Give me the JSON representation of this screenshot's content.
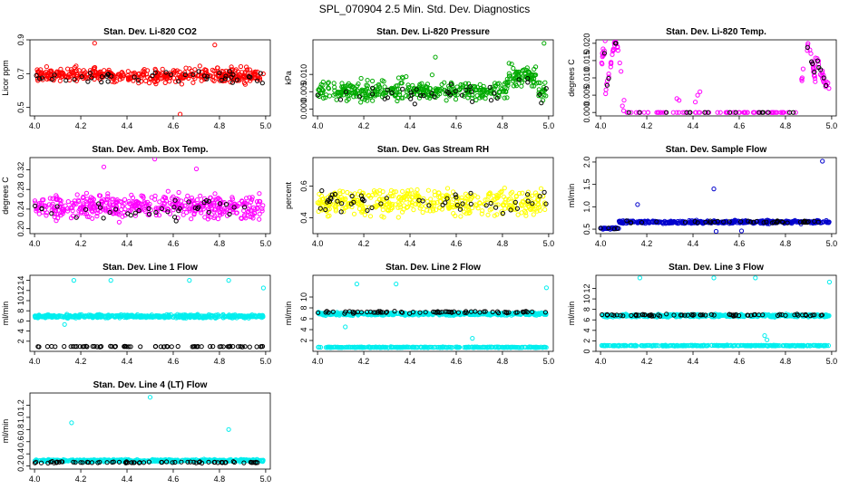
{
  "title": "SPL_070904  2.5 Min. Std. Dev. Diagnostics",
  "chart_data": [
    {
      "type": "scatter",
      "id": "co2",
      "title": "Stan. Dev. Li-820 CO2",
      "xlabel": "",
      "ylabel": "Licor ppm",
      "xlim": [
        3.98,
        5.02
      ],
      "ylim": [
        0.45,
        0.9
      ],
      "xticks": [
        "4.0",
        "4.2",
        "4.4",
        "4.6",
        "4.8",
        "5.0"
      ],
      "yticks": [
        "0.5",
        "0.7",
        "0.9"
      ],
      "series": [
        {
          "name": "red",
          "color": "#ff0000",
          "n": 420,
          "fn": "band",
          "a": 0.69,
          "b": 0.06,
          "min": 0.56,
          "max": 0.84,
          "outliers": [
            [
              4.26,
              0.88
            ],
            [
              4.78,
              0.87
            ],
            [
              4.63,
              0.46
            ]
          ]
        },
        {
          "name": "black",
          "color": "#000000",
          "n": 45,
          "fn": "band",
          "a": 0.68,
          "b": 0.05,
          "min": 0.58,
          "max": 0.82
        }
      ]
    },
    {
      "type": "scatter",
      "id": "pressure",
      "title": "Stan. Dev. Li-820 Pressure",
      "xlabel": "",
      "ylabel": "kPa",
      "xlim": [
        3.98,
        5.02
      ],
      "ylim": [
        -0.002,
        0.02
      ],
      "xticks": [
        "4.0",
        "4.2",
        "4.4",
        "4.6",
        "4.8",
        "5.0"
      ],
      "yticks": [
        "0.000",
        "0.005",
        "0.010"
      ],
      "series": [
        {
          "name": "green",
          "color": "#00aa00",
          "n": 440,
          "fn": "pressure",
          "a": 0.005,
          "b": 0.002,
          "min": 0.0,
          "max": 0.016,
          "outliers": [
            [
              4.98,
              0.019
            ],
            [
              4.51,
              0.015
            ],
            [
              4.84,
              0.013
            ]
          ]
        },
        {
          "name": "black",
          "color": "#000000",
          "n": 40,
          "fn": "pressure",
          "a": 0.004,
          "b": 0.002,
          "min": 0.0,
          "max": 0.01
        }
      ]
    },
    {
      "type": "scatter",
      "id": "temp",
      "title": "Stan. Dev. Li-820 Temp.",
      "xlabel": "",
      "ylabel": "degrees C",
      "xlim": [
        3.98,
        5.02
      ],
      "ylim": [
        -0.001,
        0.021
      ],
      "xticks": [
        "4.0",
        "4.2",
        "4.4",
        "4.6",
        "4.8",
        "5.0"
      ],
      "yticks": [
        "0.000",
        "0.005",
        "0.010",
        "0.015",
        "0.020"
      ],
      "series": [
        {
          "name": "magenta",
          "color": "#ff00ff",
          "n": 160,
          "fn": "temp",
          "a": 0,
          "b": 0,
          "min": 0,
          "max": 0.021,
          "outliers": [
            [
              4.33,
              0.004
            ],
            [
              4.34,
              0.0035
            ],
            [
              4.42,
              0.005
            ],
            [
              4.43,
              0.006
            ],
            [
              4.41,
              0.003
            ]
          ]
        },
        {
          "name": "black",
          "color": "#000000",
          "n": 30,
          "fn": "temp",
          "a": 0,
          "b": 0,
          "min": 0,
          "max": 0.02
        }
      ]
    },
    {
      "type": "scatter",
      "id": "ambbox",
      "title": "Stan. Dev. Amb. Box Temp.",
      "xlabel": "",
      "ylabel": "degrees C",
      "xlim": [
        3.98,
        5.02
      ],
      "ylim": [
        0.19,
        0.345
      ],
      "xticks": [
        "4.0",
        "4.2",
        "4.4",
        "4.6",
        "4.8",
        "5.0"
      ],
      "yticks": [
        "0.20",
        "0.24",
        "0.28",
        "0.32"
      ],
      "series": [
        {
          "name": "magenta",
          "color": "#ff00ff",
          "n": 450,
          "fn": "band",
          "a": 0.245,
          "b": 0.035,
          "min": 0.205,
          "max": 0.33,
          "outliers": [
            [
              4.52,
              0.342
            ],
            [
              4.3,
              0.326
            ],
            [
              4.7,
              0.322
            ]
          ]
        },
        {
          "name": "black",
          "color": "#000000",
          "n": 40,
          "fn": "band",
          "a": 0.24,
          "b": 0.03,
          "min": 0.2,
          "max": 0.27
        }
      ]
    },
    {
      "type": "scatter",
      "id": "rh",
      "title": "Stan. Dev. Gas Stream RH",
      "xlabel": "",
      "ylabel": "percent",
      "xlim": [
        3.98,
        5.02
      ],
      "ylim": [
        0.3,
        0.78
      ],
      "xticks": [
        "4.0",
        "4.2",
        "4.4",
        "4.6",
        "4.8",
        "5.0"
      ],
      "yticks": [
        "0.4",
        "0.6"
      ],
      "series": [
        {
          "name": "yellow",
          "color": "#ffff00",
          "n": 430,
          "fn": "band",
          "a": 0.5,
          "b": 0.12,
          "min": 0.33,
          "max": 0.76
        },
        {
          "name": "black",
          "color": "#000000",
          "n": 50,
          "fn": "band",
          "a": 0.5,
          "b": 0.1,
          "min": 0.35,
          "max": 0.72
        }
      ]
    },
    {
      "type": "scatter",
      "id": "sampleflow",
      "title": "Stan. Dev. Sample Flow",
      "xlabel": "",
      "ylabel": "ml/min",
      "xlim": [
        3.98,
        5.02
      ],
      "ylim": [
        0.4,
        2.1
      ],
      "xticks": [
        "4.0",
        "4.2",
        "4.4",
        "4.6",
        "4.8",
        "5.0"
      ],
      "yticks": [
        "0.5",
        "1.0",
        "1.5",
        "2.0"
      ],
      "series": [
        {
          "name": "blue",
          "color": "#0000cc",
          "n": 420,
          "fn": "sampleflow",
          "a": 0.66,
          "b": 0.05,
          "min": 0.45,
          "max": 0.85,
          "outliers": [
            [
              4.96,
              2.02
            ],
            [
              4.49,
              1.4
            ],
            [
              4.16,
              1.05
            ],
            [
              4.5,
              0.45
            ],
            [
              4.61,
              0.46
            ]
          ]
        },
        {
          "name": "black",
          "color": "#000000",
          "n": 45,
          "fn": "sampleflow",
          "a": 0.66,
          "b": 0.04,
          "min": 0.5,
          "max": 0.8
        }
      ]
    },
    {
      "type": "scatter",
      "id": "line1",
      "title": "Stan. Dev. Line 1 Flow",
      "xlabel": "",
      "ylabel": "ml/min",
      "xlim": [
        3.98,
        5.02
      ],
      "ylim": [
        0.0,
        15
      ],
      "xticks": [
        "4.0",
        "4.2",
        "4.4",
        "4.6",
        "4.8",
        "5.0"
      ],
      "yticks": [
        "2",
        "4",
        "6",
        "8",
        "10",
        "12",
        "14"
      ],
      "series": [
        {
          "name": "cyan",
          "color": "#00eeee",
          "n": 480,
          "fn": "band",
          "a": 6.9,
          "b": 0.45,
          "min": 5.8,
          "max": 8.0,
          "outliers": [
            [
              4.17,
              14.0
            ],
            [
              4.33,
              14.0
            ],
            [
              4.67,
              14.0
            ],
            [
              4.84,
              14.0
            ],
            [
              4.99,
              12.5
            ],
            [
              4.13,
              5.3
            ]
          ]
        },
        {
          "name": "black",
          "color": "#000000",
          "n": 70,
          "fn": "band",
          "a": 0.95,
          "b": 0.1,
          "min": 0.8,
          "max": 1.1
        }
      ]
    },
    {
      "type": "scatter",
      "id": "line2",
      "title": "Stan. Dev. Line 2 Flow",
      "xlabel": "",
      "ylabel": "ml/min",
      "xlim": [
        3.98,
        5.02
      ],
      "ylim": [
        0.0,
        14
      ],
      "xticks": [
        "4.0",
        "4.2",
        "4.4",
        "4.6",
        "4.8",
        "5.0"
      ],
      "yticks": [
        "2",
        "4",
        "6",
        "8",
        "10"
      ],
      "series": [
        {
          "name": "cyan",
          "color": "#00eeee",
          "n": 460,
          "fn": "band",
          "a": 6.9,
          "b": 0.4,
          "min": 6.0,
          "max": 7.8,
          "outliers": [
            [
              4.17,
              12.4
            ],
            [
              4.34,
              12.4
            ],
            [
              4.99,
              11.7
            ],
            [
              4.67,
              2.4
            ],
            [
              4.12,
              4.5
            ]
          ]
        },
        {
          "name": "cyan-low",
          "color": "#00eeee",
          "n": 300,
          "fn": "band",
          "a": 0.75,
          "b": 0.1,
          "min": 0.6,
          "max": 0.9
        },
        {
          "name": "black",
          "color": "#000000",
          "n": 70,
          "fn": "band",
          "a": 7.2,
          "b": 0.3,
          "min": 6.6,
          "max": 8.2
        }
      ]
    },
    {
      "type": "scatter",
      "id": "line3",
      "title": "Stan. Dev. Line 3 Flow",
      "xlabel": "",
      "ylabel": "ml/min",
      "xlim": [
        3.98,
        5.02
      ],
      "ylim": [
        0.0,
        14.5
      ],
      "xticks": [
        "4.0",
        "4.2",
        "4.4",
        "4.6",
        "4.8",
        "5.0"
      ],
      "yticks": [
        "0",
        "2",
        "4",
        "6",
        "8",
        "10",
        "12"
      ],
      "series": [
        {
          "name": "cyan",
          "color": "#00eeee",
          "n": 440,
          "fn": "band",
          "a": 6.8,
          "b": 0.35,
          "min": 6.0,
          "max": 7.6,
          "outliers": [
            [
              4.17,
              14.0
            ],
            [
              4.49,
              14.0
            ],
            [
              4.67,
              14.0
            ],
            [
              4.99,
              13.2
            ],
            [
              4.71,
              3.0
            ],
            [
              4.72,
              2.2
            ]
          ]
        },
        {
          "name": "cyan-low",
          "color": "#00eeee",
          "n": 300,
          "fn": "band",
          "a": 1.1,
          "b": 0.12,
          "min": 0.9,
          "max": 1.3
        },
        {
          "name": "black",
          "color": "#000000",
          "n": 70,
          "fn": "band",
          "a": 6.9,
          "b": 0.3,
          "min": 6.3,
          "max": 8.8
        }
      ]
    },
    {
      "type": "scatter",
      "id": "line4",
      "title": "Stan. Dev. Line 4 (LT) Flow",
      "xlabel": "",
      "ylabel": "ml/min",
      "xlim": [
        3.98,
        5.02
      ],
      "ylim": [
        0.15,
        1.4
      ],
      "xticks": [
        "4.0",
        "4.2",
        "4.4",
        "4.6",
        "4.8",
        "5.0"
      ],
      "yticks": [
        "0.2",
        "0.4",
        "0.6",
        "0.8",
        "1.0",
        "1.2"
      ],
      "series": [
        {
          "name": "cyan",
          "color": "#00eeee",
          "n": 470,
          "fn": "band",
          "a": 0.29,
          "b": 0.025,
          "min": 0.24,
          "max": 0.35,
          "outliers": [
            [
              4.5,
              1.33
            ],
            [
              4.16,
              0.91
            ],
            [
              4.84,
              0.8
            ]
          ]
        },
        {
          "name": "black",
          "color": "#000000",
          "n": 70,
          "fn": "band",
          "a": 0.26,
          "b": 0.02,
          "min": 0.22,
          "max": 0.31
        }
      ]
    }
  ]
}
